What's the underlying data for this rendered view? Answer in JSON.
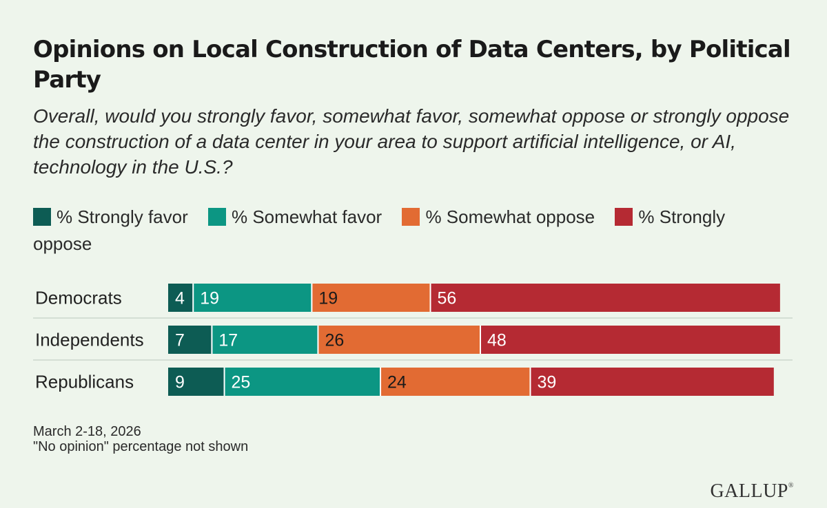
{
  "title": "Opinions on Local Construction of Data Centers, by Political Party",
  "subtitle": "Overall, would you strongly favor, somewhat favor, somewhat oppose or strongly oppose the construction of a data center in your area to support artificial intelligence, or AI, technology in the U.S.?",
  "notes": {
    "date": "March 2-18, 2026",
    "footnote": "\"No opinion\" percentage not shown"
  },
  "brand": "GALLUP",
  "brand_mark": "®",
  "colors": {
    "background": "#eef5ec",
    "strongly_favor": "#0d5c54",
    "somewhat_favor": "#0c9683",
    "somewhat_oppose": "#e26b33",
    "strongly_oppose": "#b52a33",
    "separator": "#ccd7cc"
  },
  "chart_data": {
    "type": "bar",
    "orientation": "horizontal",
    "stacked": true,
    "categories": [
      "Democrats",
      "Independents",
      "Republicans"
    ],
    "series": [
      {
        "name": "% Strongly favor",
        "values": [
          4,
          7,
          9
        ],
        "color": "#0d5c54"
      },
      {
        "name": "% Somewhat favor",
        "values": [
          19,
          17,
          25
        ],
        "color": "#0c9683"
      },
      {
        "name": "% Somewhat oppose",
        "values": [
          19,
          26,
          24
        ],
        "color": "#e26b33"
      },
      {
        "name": "% Strongly oppose",
        "values": [
          56,
          48,
          39
        ],
        "color": "#b52a33"
      }
    ],
    "data_labels": true,
    "legend_position": "top",
    "xlim": [
      0,
      100
    ]
  }
}
